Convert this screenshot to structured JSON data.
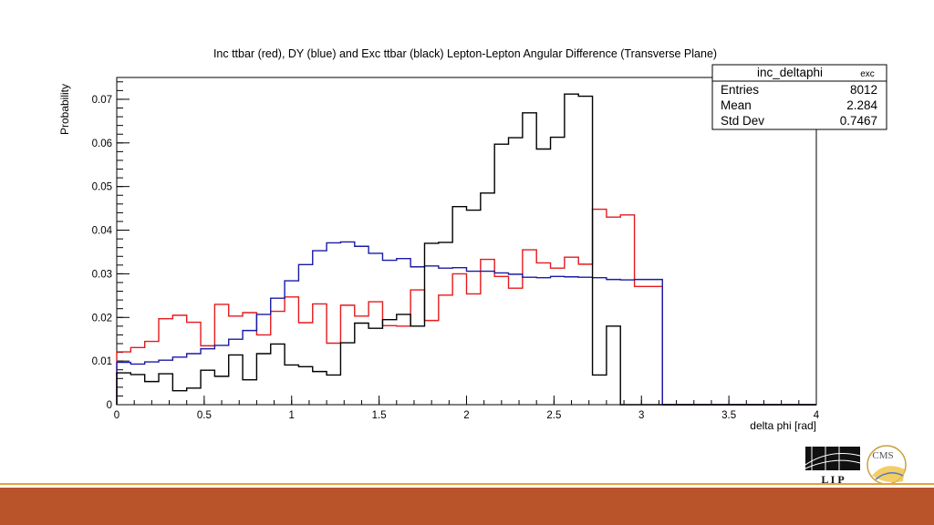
{
  "chart_data": {
    "type": "histogram-step",
    "title": "Inc ttbar (red), DY (blue) and Exc ttbar (black) Lepton-Lepton Angular Difference (Transverse Plane)",
    "xlabel": "delta phi [rad]",
    "ylabel": "Probability",
    "xlim": [
      0,
      4
    ],
    "ylim": [
      0,
      0.075
    ],
    "x_ticks": [
      "0",
      "0.5",
      "1",
      "1.5",
      "2",
      "2.5",
      "3",
      "3.5",
      "4"
    ],
    "y_ticks": [
      "0",
      "0.01",
      "0.02",
      "0.03",
      "0.04",
      "0.05",
      "0.06",
      "0.07"
    ],
    "bin_width": 0.08,
    "series": [
      {
        "color": "#e41a1c",
        "values": [
          0.0121,
          0.0131,
          0.0145,
          0.0197,
          0.0205,
          0.0189,
          0.0135,
          0.023,
          0.0203,
          0.0211,
          0.016,
          0.0214,
          0.0247,
          0.0188,
          0.0231,
          0.0141,
          0.0228,
          0.0203,
          0.0236,
          0.0181,
          0.018,
          0.0263,
          0.0193,
          0.0251,
          0.03,
          0.0254,
          0.0333,
          0.0294,
          0.0267,
          0.0355,
          0.0325,
          0.0313,
          0.0338,
          0.0322,
          0.0448,
          0.043,
          0.0435,
          0.0271,
          0.0271,
          0.0,
          0.0,
          0.0,
          0.0,
          0.0,
          0.0,
          0.0,
          0.0,
          0.0,
          0.0,
          0.0
        ]
      },
      {
        "color": "#1a1aa6",
        "values": [
          0.0097,
          0.0093,
          0.0098,
          0.0102,
          0.0109,
          0.0117,
          0.0128,
          0.0136,
          0.015,
          0.017,
          0.0207,
          0.0244,
          0.0284,
          0.0321,
          0.0353,
          0.0371,
          0.0373,
          0.0363,
          0.0347,
          0.0331,
          0.0335,
          0.0316,
          0.0318,
          0.0313,
          0.0314,
          0.0306,
          0.0306,
          0.0302,
          0.0299,
          0.0292,
          0.0291,
          0.0294,
          0.0293,
          0.0292,
          0.0291,
          0.0287,
          0.0286,
          0.0287,
          0.0287,
          0.0,
          0.0,
          0.0,
          0.0,
          0.0,
          0.0,
          0.0,
          0.0,
          0.0,
          0.0,
          0.0
        ]
      },
      {
        "color": "#000000",
        "values": [
          0.0073,
          0.0069,
          0.0053,
          0.0071,
          0.0032,
          0.0038,
          0.0079,
          0.0065,
          0.0114,
          0.0057,
          0.0117,
          0.0139,
          0.0091,
          0.0087,
          0.0076,
          0.0068,
          0.0142,
          0.0187,
          0.0175,
          0.0195,
          0.0207,
          0.018,
          0.037,
          0.0372,
          0.0454,
          0.0446,
          0.0485,
          0.0597,
          0.0612,
          0.0669,
          0.0586,
          0.0613,
          0.0712,
          0.0707,
          0.0068,
          0.018,
          0.0,
          0.0,
          0.0,
          0.0,
          0.0,
          0.0,
          0.0,
          0.0,
          0.0,
          0.0,
          0.0,
          0.0,
          0.0,
          0.0
        ]
      }
    ],
    "stats_box": {
      "name": "inc_deltaphi",
      "suffix": "exc",
      "rows": [
        {
          "label": "Entries",
          "value": "8012"
        },
        {
          "label": "Mean",
          "value": "2.284"
        },
        {
          "label": "Std Dev",
          "value": "0.7467"
        }
      ]
    }
  },
  "logos": {
    "lip": "L I P",
    "cms": "CMS"
  },
  "colors": {
    "footer": "#b8532a",
    "footer_line": "#e8a23a"
  }
}
